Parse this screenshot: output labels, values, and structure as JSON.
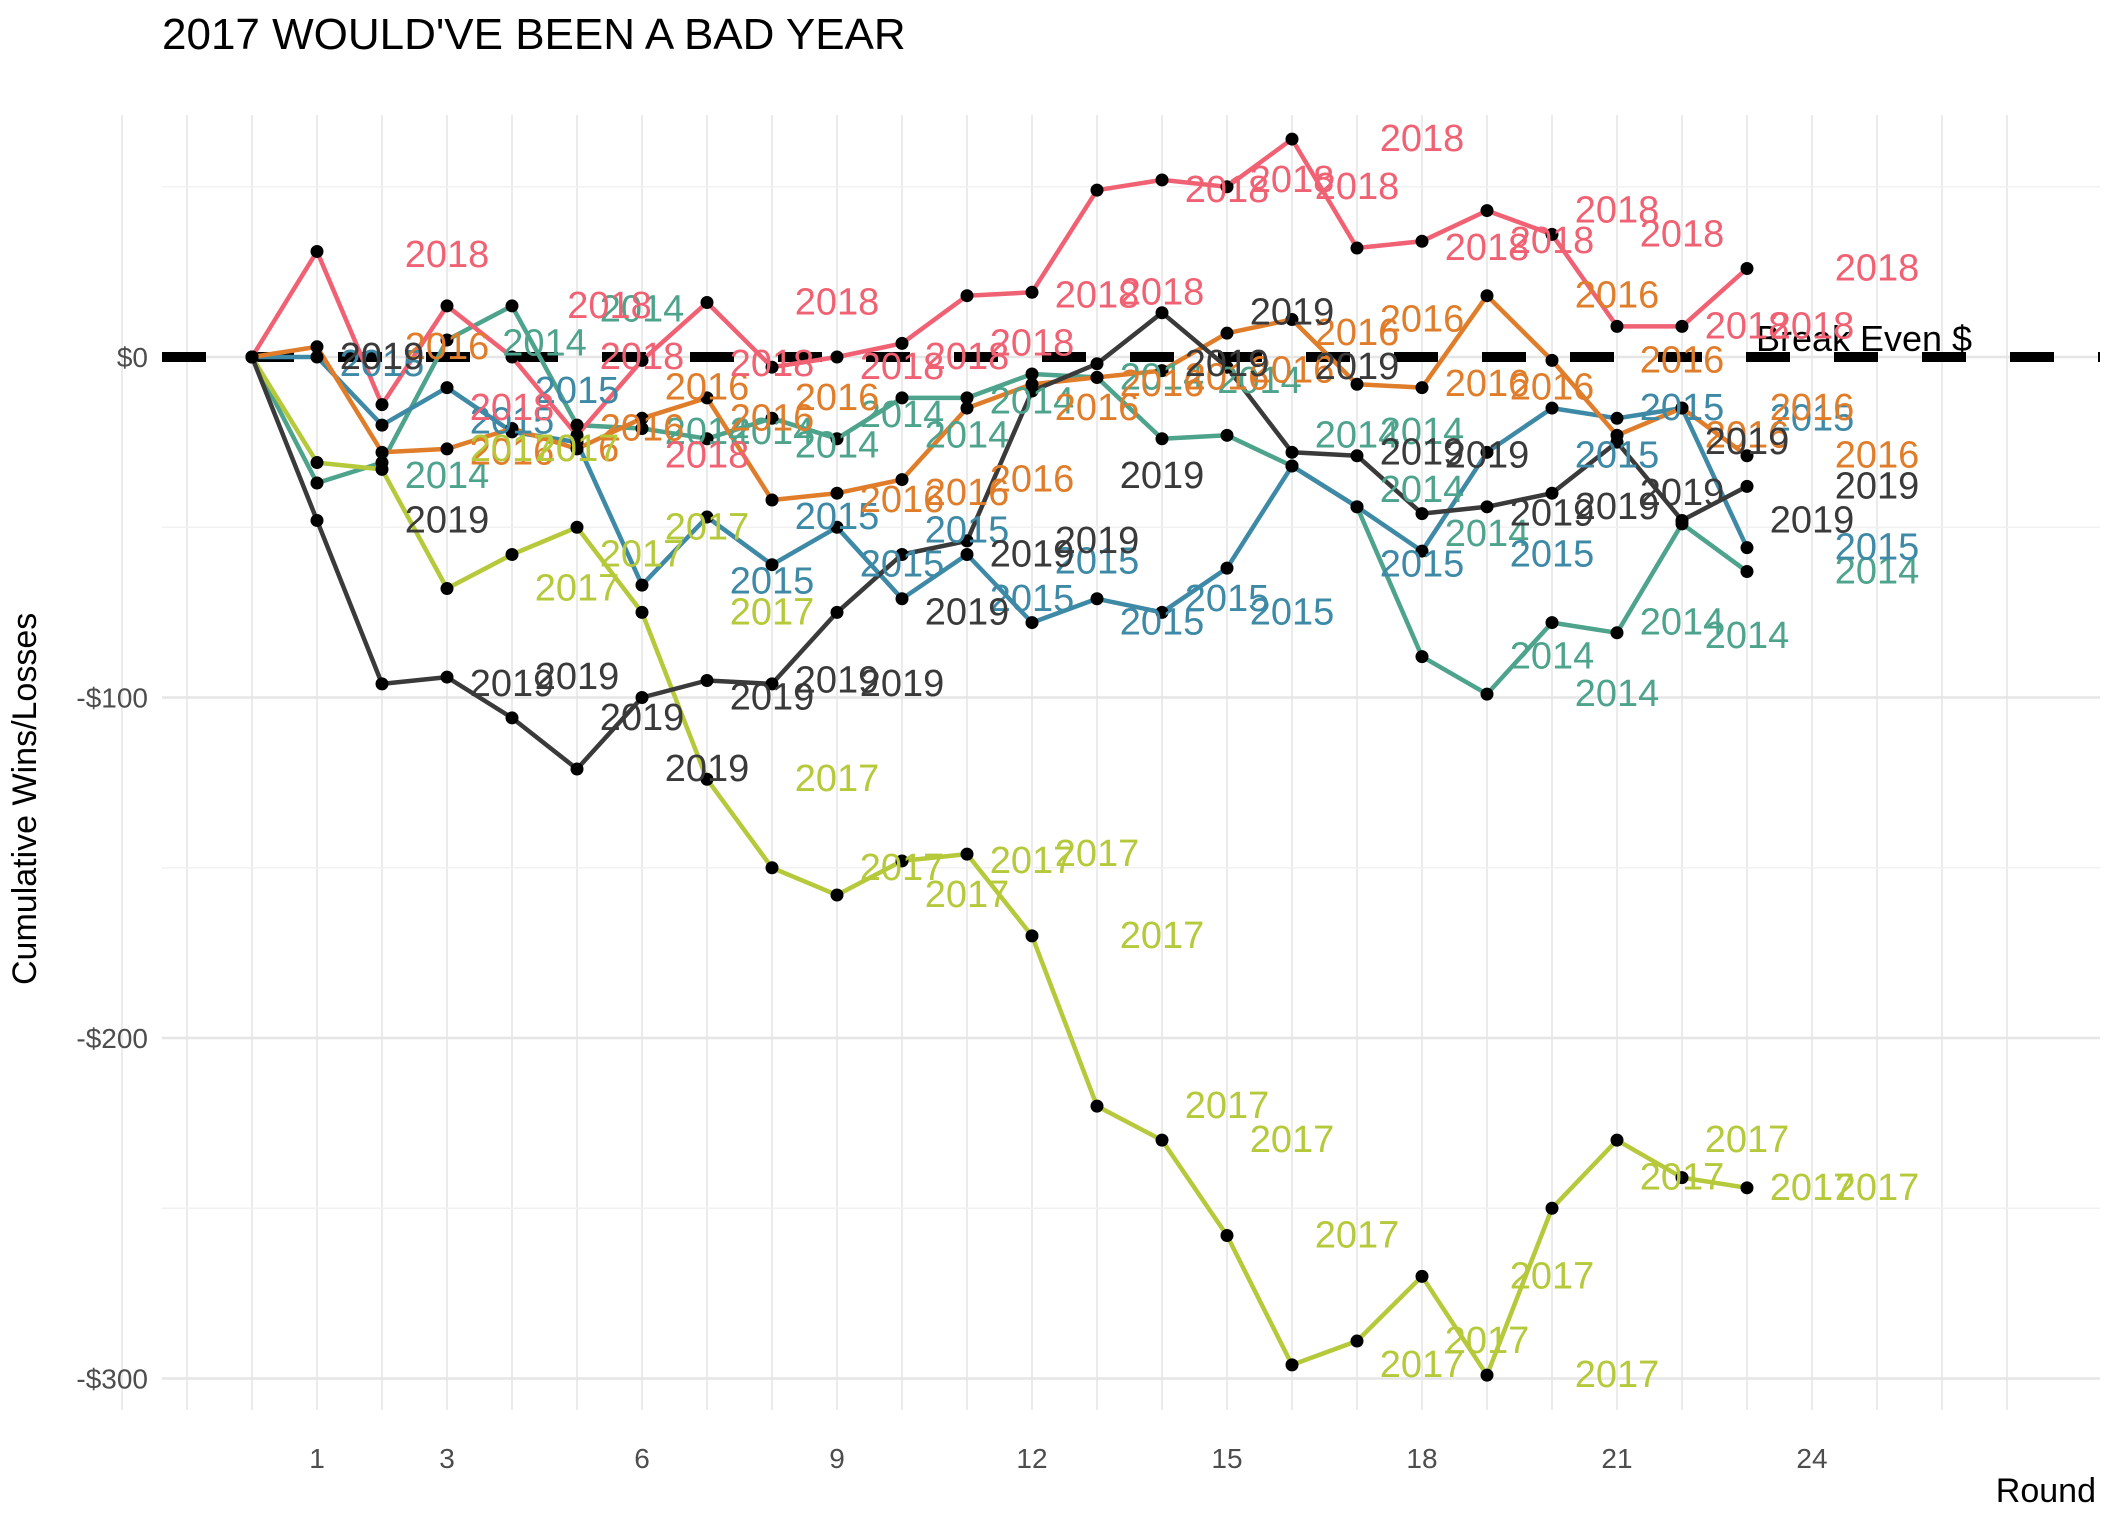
{
  "chart_data": {
    "type": "line",
    "title": "2017 WOULD'VE BEEN A BAD YEAR",
    "xlabel": "Round",
    "ylabel": "Cumulative Wins/Losses",
    "xlim": [
      -2,
      27
    ],
    "ylim": [
      -310,
      55
    ],
    "x_ticks": [
      1,
      3,
      6,
      9,
      12,
      15,
      18,
      21,
      24
    ],
    "y_ticks": [
      0,
      -100,
      -200,
      -300
    ],
    "y_tick_labels": [
      "$0",
      "-$100",
      "-$200",
      "-$300"
    ],
    "grid": true,
    "reference_line": {
      "y": 0,
      "style": "dashed",
      "label": "Break Even $"
    },
    "series": [
      {
        "name": "2014",
        "color": "#4da38b",
        "x": [
          0,
          1,
          2,
          3,
          4,
          5,
          6,
          7,
          8,
          9,
          10,
          11,
          12,
          13,
          14,
          15,
          16,
          17,
          18,
          19,
          20,
          21,
          22,
          23
        ],
        "y": [
          0,
          -37,
          -31,
          5,
          15,
          -20,
          -21,
          -24,
          -18,
          -24,
          -12,
          -12,
          -5,
          -6,
          -24,
          -23,
          -32,
          -44,
          -88,
          -99,
          -78,
          -81,
          -49,
          -63
        ],
        "labels": [
          {
            "x": 3,
            "y": -35
          },
          {
            "x": 4.5,
            "y": 4
          },
          {
            "x": 6,
            "y": 14
          },
          {
            "x": 7,
            "y": -22
          },
          {
            "x": 8,
            "y": -22
          },
          {
            "x": 9,
            "y": -26
          },
          {
            "x": 10,
            "y": -17
          },
          {
            "x": 11,
            "y": -23
          },
          {
            "x": 12,
            "y": -13
          },
          {
            "x": 14,
            "y": -6
          },
          {
            "x": 15.5,
            "y": -7
          },
          {
            "x": 17,
            "y": -23
          },
          {
            "x": 18,
            "y": -22
          },
          {
            "x": 18,
            "y": -39
          },
          {
            "x": 19,
            "y": -52
          },
          {
            "x": 20,
            "y": -88
          },
          {
            "x": 21,
            "y": -99
          },
          {
            "x": 22,
            "y": -78
          },
          {
            "x": 23,
            "y": -82
          },
          {
            "x": 25,
            "y": -63
          }
        ]
      },
      {
        "name": "2015",
        "color": "#3d89a6",
        "x": [
          0,
          1,
          2,
          3,
          4,
          5,
          6,
          7,
          8,
          9,
          10,
          11,
          12,
          13,
          14,
          15,
          16,
          17,
          18,
          19,
          20,
          21,
          22,
          23
        ],
        "y": [
          0,
          0,
          -20,
          -9,
          -22,
          -25,
          -67,
          -47,
          -61,
          -50,
          -71,
          -58,
          -78,
          -71,
          -75,
          -62,
          -32,
          -44,
          -57,
          -28,
          -15,
          -18,
          -15,
          -56
        ],
        "labels": [
          {
            "x": 2,
            "y": -2
          },
          {
            "x": 4,
            "y": -19
          },
          {
            "x": 5,
            "y": -10
          },
          {
            "x": 8,
            "y": -66
          },
          {
            "x": 9,
            "y": -47
          },
          {
            "x": 10,
            "y": -61
          },
          {
            "x": 11,
            "y": -51
          },
          {
            "x": 12,
            "y": -71
          },
          {
            "x": 13,
            "y": -60
          },
          {
            "x": 14,
            "y": -78
          },
          {
            "x": 15,
            "y": -71
          },
          {
            "x": 16,
            "y": -75
          },
          {
            "x": 18,
            "y": -61
          },
          {
            "x": 20,
            "y": -58
          },
          {
            "x": 21,
            "y": -29
          },
          {
            "x": 22,
            "y": -15
          },
          {
            "x": 24,
            "y": -18
          },
          {
            "x": 25,
            "y": -56
          }
        ]
      },
      {
        "name": "2016",
        "color": "#e07d2a",
        "x": [
          0,
          1,
          2,
          3,
          4,
          5,
          6,
          7,
          8,
          9,
          10,
          11,
          12,
          13,
          14,
          15,
          16,
          17,
          18,
          19,
          20,
          21,
          22,
          23
        ],
        "y": [
          0,
          3,
          -28,
          -27,
          -21,
          -27,
          -18,
          -12,
          -42,
          -40,
          -36,
          -15,
          -8,
          -6,
          -4,
          7,
          11,
          -8,
          -9,
          18,
          -1,
          -23,
          -15,
          -29
        ],
        "labels": [
          {
            "x": 3,
            "y": 3
          },
          {
            "x": 4,
            "y": -28
          },
          {
            "x": 5,
            "y": -27
          },
          {
            "x": 6,
            "y": -21
          },
          {
            "x": 7,
            "y": -9
          },
          {
            "x": 8,
            "y": -18
          },
          {
            "x": 9,
            "y": -12
          },
          {
            "x": 10,
            "y": -42
          },
          {
            "x": 11,
            "y": -40
          },
          {
            "x": 12,
            "y": -36
          },
          {
            "x": 13,
            "y": -15
          },
          {
            "x": 14,
            "y": -8
          },
          {
            "x": 15,
            "y": -6
          },
          {
            "x": 16,
            "y": -4
          },
          {
            "x": 17,
            "y": 7
          },
          {
            "x": 18,
            "y": 11
          },
          {
            "x": 19,
            "y": -8
          },
          {
            "x": 20,
            "y": -9
          },
          {
            "x": 21,
            "y": 18
          },
          {
            "x": 22,
            "y": -1
          },
          {
            "x": 23,
            "y": -23
          },
          {
            "x": 24,
            "y": -15
          },
          {
            "x": 25,
            "y": -29
          }
        ]
      },
      {
        "name": "2017",
        "color": "#b5c93a",
        "x": [
          0,
          1,
          2,
          3,
          4,
          5,
          6,
          7,
          8,
          9,
          10,
          11,
          12,
          13,
          14,
          15,
          16,
          17,
          18,
          19,
          20,
          21,
          22,
          23
        ],
        "y": [
          0,
          -31,
          -33,
          -68,
          -58,
          -50,
          -75,
          -124,
          -150,
          -158,
          -148,
          -146,
          -170,
          -220,
          -230,
          -258,
          -296,
          -289,
          -270,
          -299,
          -250,
          -230,
          -241,
          -244
        ],
        "labels": [
          {
            "x": 4,
            "y": -27
          },
          {
            "x": 5,
            "y": -27
          },
          {
            "x": 5,
            "y": -68
          },
          {
            "x": 6,
            "y": -58
          },
          {
            "x": 7,
            "y": -50
          },
          {
            "x": 8,
            "y": -75
          },
          {
            "x": 9,
            "y": -124
          },
          {
            "x": 10,
            "y": -150
          },
          {
            "x": 11,
            "y": -158
          },
          {
            "x": 12,
            "y": -148
          },
          {
            "x": 13,
            "y": -146
          },
          {
            "x": 14,
            "y": -170
          },
          {
            "x": 15,
            "y": -220
          },
          {
            "x": 16,
            "y": -230
          },
          {
            "x": 17,
            "y": -258
          },
          {
            "x": 18,
            "y": -296
          },
          {
            "x": 19,
            "y": -289
          },
          {
            "x": 20,
            "y": -270
          },
          {
            "x": 21,
            "y": -299
          },
          {
            "x": 23,
            "y": -230
          },
          {
            "x": 22,
            "y": -241
          },
          {
            "x": 24,
            "y": -244
          },
          {
            "x": 25,
            "y": -244
          }
        ]
      },
      {
        "name": "2018",
        "color": "#f06273",
        "x": [
          0,
          1,
          2,
          3,
          4,
          5,
          6,
          7,
          8,
          9,
          10,
          11,
          12,
          13,
          14,
          15,
          16,
          17,
          18,
          19,
          20,
          21,
          22,
          23
        ],
        "y": [
          0,
          31,
          -14,
          15,
          0,
          -23,
          -1,
          16,
          -3,
          0,
          4,
          18,
          19,
          49,
          52,
          50,
          64,
          32,
          34,
          43,
          36,
          9,
          9,
          26
        ],
        "labels": [
          {
            "x": 3,
            "y": 30
          },
          {
            "x": 4,
            "y": -15
          },
          {
            "x": 5.5,
            "y": 15
          },
          {
            "x": 6,
            "y": 0
          },
          {
            "x": 7,
            "y": -29
          },
          {
            "x": 8,
            "y": -2
          },
          {
            "x": 9,
            "y": 16
          },
          {
            "x": 10,
            "y": -3
          },
          {
            "x": 11,
            "y": 0
          },
          {
            "x": 12,
            "y": 4
          },
          {
            "x": 13,
            "y": 18
          },
          {
            "x": 14,
            "y": 19
          },
          {
            "x": 15,
            "y": 49
          },
          {
            "x": 16,
            "y": 52
          },
          {
            "x": 17,
            "y": 50
          },
          {
            "x": 18,
            "y": 64
          },
          {
            "x": 19,
            "y": 32
          },
          {
            "x": 20,
            "y": 34
          },
          {
            "x": 21,
            "y": 43
          },
          {
            "x": 22,
            "y": 36
          },
          {
            "x": 23,
            "y": 9
          },
          {
            "x": 24,
            "y": 9
          },
          {
            "x": 25,
            "y": 26
          }
        ]
      },
      {
        "name": "2019",
        "color": "#3a3a3a",
        "x": [
          0,
          1,
          2,
          3,
          4,
          5,
          6,
          7,
          8,
          9,
          10,
          11,
          12,
          13,
          14,
          15,
          16,
          17,
          18,
          19,
          20,
          21,
          22,
          23
        ],
        "y": [
          0,
          -48,
          -96,
          -94,
          -106,
          -121,
          -100,
          -95,
          -96,
          -75,
          -58,
          -54,
          -10,
          -2,
          13,
          -3,
          -28,
          -29,
          -46,
          -44,
          -40,
          -25,
          -48,
          -38
        ],
        "labels": [
          {
            "x": 2,
            "y": 0
          },
          {
            "x": 3,
            "y": -48
          },
          {
            "x": 4,
            "y": -96
          },
          {
            "x": 5,
            "y": -94
          },
          {
            "x": 6,
            "y": -106
          },
          {
            "x": 7,
            "y": -121
          },
          {
            "x": 8,
            "y": -100
          },
          {
            "x": 9,
            "y": -95
          },
          {
            "x": 10,
            "y": -96
          },
          {
            "x": 11,
            "y": -75
          },
          {
            "x": 12,
            "y": -58
          },
          {
            "x": 13,
            "y": -54
          },
          {
            "x": 14,
            "y": -35
          },
          {
            "x": 15,
            "y": -2
          },
          {
            "x": 16,
            "y": 13
          },
          {
            "x": 17,
            "y": -3
          },
          {
            "x": 18,
            "y": -28
          },
          {
            "x": 19,
            "y": -29
          },
          {
            "x": 20,
            "y": -46
          },
          {
            "x": 21,
            "y": -44
          },
          {
            "x": 22,
            "y": -40
          },
          {
            "x": 23,
            "y": -25
          },
          {
            "x": 24,
            "y": -48
          },
          {
            "x": 25,
            "y": -38
          }
        ]
      }
    ]
  }
}
